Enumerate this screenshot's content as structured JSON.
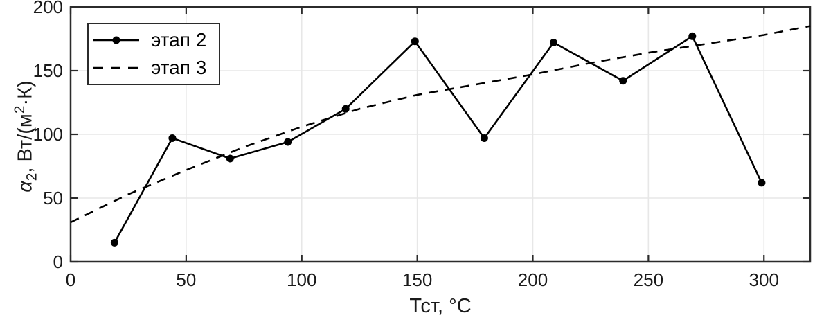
{
  "chart_data": {
    "type": "line",
    "title": "",
    "xlabel": "Тст, °C",
    "ylabel": "α2, Вт/(м2·К)",
    "ylabel_parts": {
      "variable": "α",
      "variable_sub": "2",
      "unit_pre": ", Вт/(м",
      "unit_sup": "2",
      "unit_post": "·К)"
    },
    "xlim": [
      0,
      320
    ],
    "ylim": [
      0,
      200
    ],
    "xticks": [
      0,
      50,
      100,
      150,
      200,
      250,
      300
    ],
    "yticks": [
      0,
      50,
      100,
      150,
      200
    ],
    "grid": true,
    "legend_position": "top-left",
    "series": [
      {
        "id": "etap-2",
        "name": "этап 2",
        "line_style": "solid",
        "marker": "circle",
        "color": "#000000",
        "x": [
          19,
          44,
          69,
          94,
          119,
          149,
          179,
          209,
          239,
          269,
          299
        ],
        "y": [
          15,
          97,
          81,
          94,
          120,
          173,
          97,
          172,
          142,
          177,
          62
        ]
      },
      {
        "id": "etap-3",
        "name": "этап 3",
        "line_style": "dashed",
        "marker": "none",
        "color": "#000000",
        "x": [
          0,
          25,
          50,
          75,
          100,
          125,
          150,
          175,
          200,
          225,
          250,
          275,
          300,
          320
        ],
        "y": [
          31,
          53,
          72,
          90,
          106,
          120,
          131,
          139,
          147,
          156,
          164,
          171,
          178,
          185
        ]
      }
    ],
    "colors": {
      "line": "#000000",
      "grid": "#e7e7e7",
      "axis": "#2b2b2b",
      "background": "#ffffff",
      "text": "#1a1a1a"
    }
  }
}
